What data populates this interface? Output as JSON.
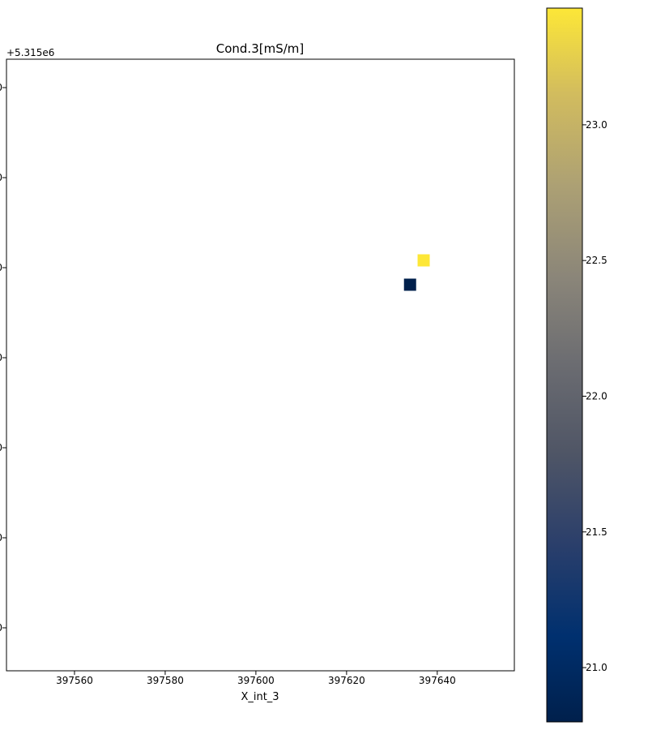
{
  "chart_data": {
    "type": "heatmap",
    "title": "Cond.3[mS/m]",
    "xlabel": "X_int_3",
    "ylabel": "",
    "y_offset_label": "+5.315e6",
    "xlim": [
      397545,
      397657
    ],
    "x_ticks": [
      397560,
      397580,
      397600,
      397620,
      397640
    ],
    "x_tick_labels": [
      "397560",
      "397580",
      "397600",
      "397620",
      "397640"
    ],
    "y_tick_labels_visible": [
      "0",
      "0",
      "0",
      "0",
      "0",
      "0",
      "0"
    ],
    "grid": false,
    "colormap": "cividis",
    "colorbar": {
      "min": 20.8,
      "max": 23.43,
      "ticks": [
        21.0,
        21.5,
        22.0,
        22.5,
        23.0
      ],
      "tick_labels": [
        "21.0",
        "21.5",
        "22.0",
        "22.5",
        "23.0"
      ]
    },
    "cells": [
      {
        "x": 397637,
        "value": 23.43,
        "color": "#fde737"
      },
      {
        "x": 397634,
        "value": 20.8,
        "color": "#00204c"
      }
    ]
  }
}
